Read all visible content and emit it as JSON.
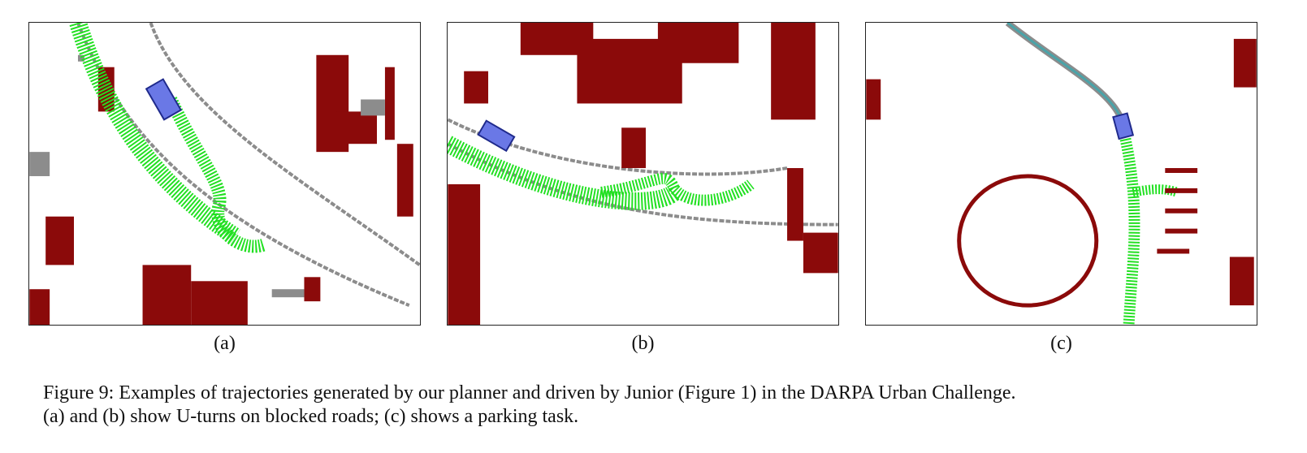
{
  "figure": {
    "panels": [
      {
        "id": "a",
        "label": "(a)"
      },
      {
        "id": "b",
        "label": "(b)"
      },
      {
        "id": "c",
        "label": "(c)"
      }
    ],
    "caption_line1": "Figure 9: Examples of trajectories generated by our planner and driven by Junior (Figure 1) in the DARPA Urban Challenge.",
    "caption_line2": "(a) and (b) show U-turns on blocked roads; (c) shows a parking task."
  },
  "colors": {
    "obstacle": "#8b0a0a",
    "road_edge": "#8c8c8c",
    "trajectory": "#22e022",
    "vehicle_fill": "#6a78e6",
    "vehicle_stroke": "#1f2a8c",
    "driven_path": "#4aa3a8"
  },
  "icons": {
    "vehicle": "car-icon"
  }
}
